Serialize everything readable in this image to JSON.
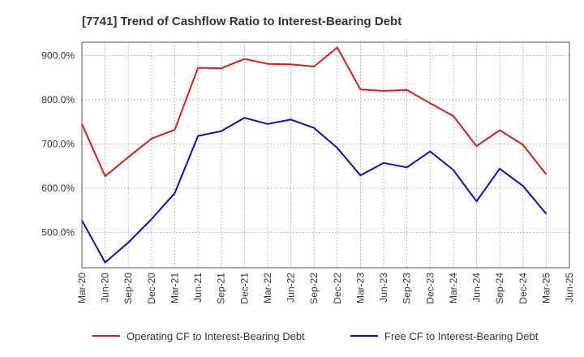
{
  "chart_data": {
    "type": "line",
    "title": "[7741]  Trend of Cashflow Ratio to Interest-Bearing Debt",
    "xlabel": "",
    "ylabel": "",
    "categories": [
      "Mar-20",
      "Jun-20",
      "Sep-20",
      "Dec-20",
      "Mar-21",
      "Jun-21",
      "Sep-21",
      "Dec-21",
      "Mar-22",
      "Jun-22",
      "Sep-22",
      "Dec-22",
      "Mar-23",
      "Jun-23",
      "Sep-23",
      "Dec-23",
      "Mar-24",
      "Jun-24",
      "Sep-24",
      "Dec-24",
      "Mar-25",
      "Jun-25"
    ],
    "y_ticks": [
      "500.0%",
      "600.0%",
      "700.0%",
      "800.0%",
      "900.0%"
    ],
    "ylim": [
      420,
      930
    ],
    "grid": true,
    "legend_position": "bottom",
    "series": [
      {
        "name": "Operating CF to Interest-Bearing Debt",
        "color": "#e31a1c",
        "values": [
          745,
          627,
          670,
          712,
          732,
          872,
          871,
          892,
          881,
          880,
          875,
          918,
          823,
          820,
          822,
          792,
          763,
          695,
          731,
          698,
          631,
          null
        ]
      },
      {
        "name": "Free CF to Interest-Bearing Debt",
        "color": "#0a0ad8",
        "values": [
          527,
          432,
          477,
          530,
          589,
          718,
          729,
          759,
          745,
          755,
          736,
          691,
          629,
          657,
          647,
          683,
          641,
          570,
          644,
          605,
          542,
          null
        ]
      }
    ]
  }
}
